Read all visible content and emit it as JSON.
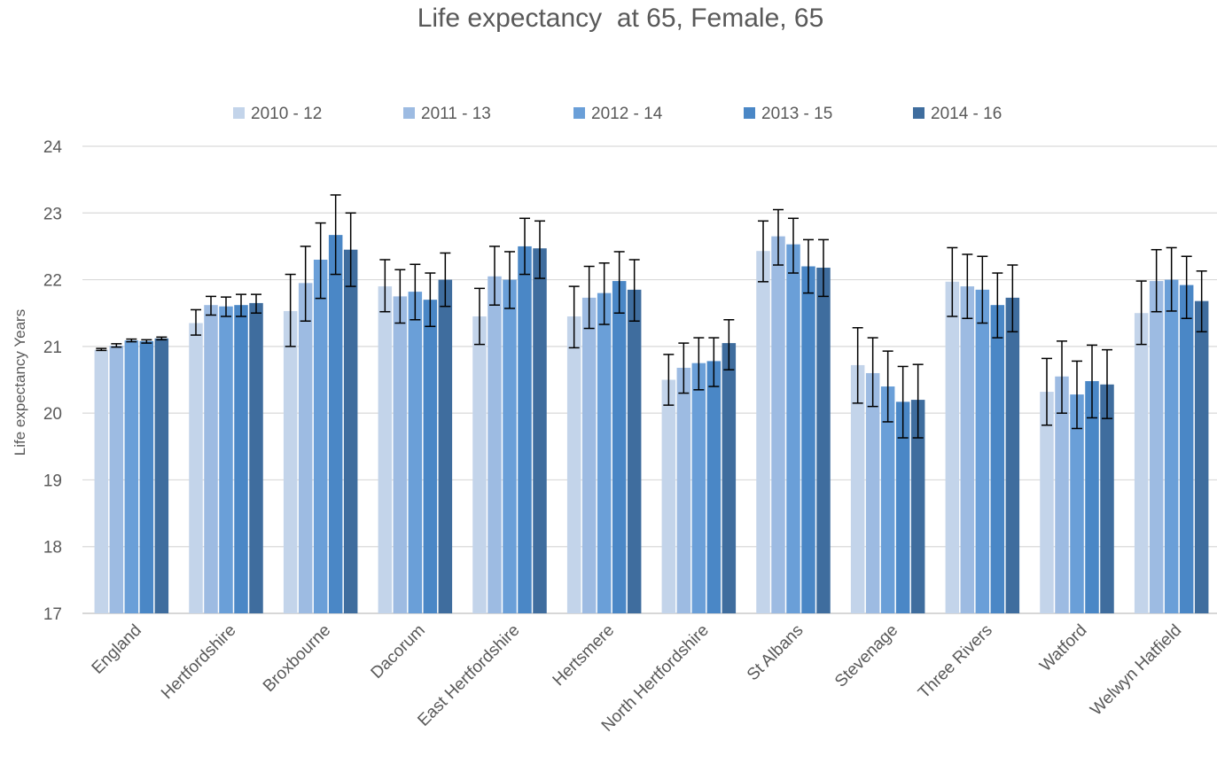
{
  "chart_data": {
    "type": "bar",
    "title": "Life expectancy  at 65, Female, 65",
    "ylabel": "Life expectancy Years",
    "xlabel": "",
    "ylim": [
      17,
      24
    ],
    "yticks": [
      17,
      18,
      19,
      20,
      21,
      22,
      23,
      24
    ],
    "grid": true,
    "legend_position": "top",
    "categories": [
      "England",
      "Hertfordshire",
      "Broxbourne",
      "Dacorum",
      "East Hertfordshire",
      "Hertsmere",
      "North Hertfordshire",
      "St Albans",
      "Stevenage",
      "Three Rivers",
      "Watford",
      "Welwyn Hatfield"
    ],
    "series": [
      {
        "name": "2010 - 12",
        "color": "#c3d4ea",
        "values": [
          20.95,
          21.35,
          21.53,
          21.9,
          21.45,
          21.45,
          20.5,
          22.43,
          20.72,
          21.97,
          20.32,
          21.5
        ],
        "lower": [
          20.94,
          21.17,
          21.0,
          21.52,
          21.03,
          20.98,
          20.12,
          21.97,
          20.15,
          21.45,
          19.82,
          21.03
        ],
        "upper": [
          20.97,
          21.55,
          22.08,
          22.3,
          21.87,
          21.9,
          20.88,
          22.88,
          21.28,
          22.48,
          20.82,
          21.98
        ]
      },
      {
        "name": "2011 - 13",
        "color": "#9dbbe2",
        "values": [
          21.01,
          21.62,
          21.95,
          21.75,
          22.05,
          21.73,
          20.68,
          22.65,
          20.6,
          21.9,
          20.55,
          21.98
        ],
        "lower": [
          20.99,
          21.47,
          21.38,
          21.35,
          21.62,
          21.27,
          20.3,
          22.22,
          20.1,
          21.42,
          20.0,
          21.52
        ],
        "upper": [
          21.04,
          21.75,
          22.5,
          22.15,
          22.5,
          22.2,
          21.05,
          23.05,
          21.13,
          22.38,
          21.08,
          22.45
        ]
      },
      {
        "name": "2012 - 14",
        "color": "#6a9fd8",
        "values": [
          21.09,
          21.6,
          22.3,
          21.82,
          22.0,
          21.8,
          20.75,
          22.53,
          20.4,
          21.85,
          20.28,
          22.0
        ],
        "lower": [
          21.07,
          21.45,
          21.72,
          21.4,
          21.57,
          21.33,
          20.35,
          22.1,
          19.87,
          21.35,
          19.77,
          21.53
        ],
        "upper": [
          21.11,
          21.74,
          22.85,
          22.23,
          22.42,
          22.25,
          21.13,
          22.92,
          20.93,
          22.35,
          20.78,
          22.48
        ]
      },
      {
        "name": "2013 - 15",
        "color": "#4a87c6",
        "values": [
          21.08,
          21.62,
          22.67,
          21.7,
          22.5,
          21.98,
          20.78,
          22.2,
          20.17,
          21.62,
          20.48,
          21.92
        ],
        "lower": [
          21.05,
          21.45,
          22.08,
          21.3,
          22.08,
          21.5,
          20.4,
          21.8,
          19.63,
          21.13,
          19.93,
          21.42
        ],
        "upper": [
          21.1,
          21.78,
          23.27,
          22.1,
          22.92,
          22.42,
          21.13,
          22.6,
          20.7,
          22.1,
          21.02,
          22.35
        ]
      },
      {
        "name": "2014 - 16",
        "color": "#3f6d9e",
        "values": [
          21.12,
          21.65,
          22.45,
          22.0,
          22.47,
          21.85,
          21.05,
          22.18,
          20.2,
          21.73,
          20.43,
          21.68
        ],
        "lower": [
          21.1,
          21.5,
          21.9,
          21.6,
          22.02,
          21.38,
          20.65,
          21.75,
          19.63,
          21.22,
          19.92,
          21.22
        ],
        "upper": [
          21.14,
          21.78,
          23.0,
          22.4,
          22.88,
          22.3,
          21.4,
          22.6,
          20.73,
          22.22,
          20.95,
          22.13
        ]
      }
    ]
  }
}
